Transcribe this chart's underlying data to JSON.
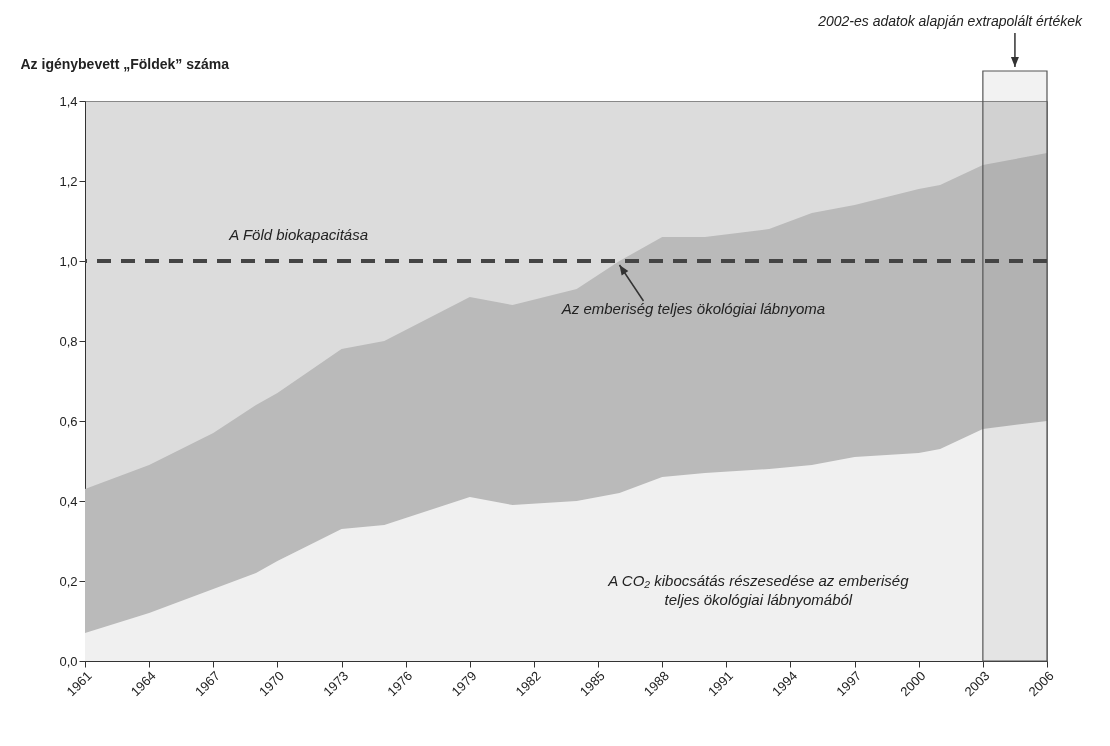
{
  "chart_data": {
    "type": "area",
    "ylabel": "Az igénybevett „Földek” száma",
    "x": [
      1961,
      1964,
      1967,
      1969,
      1970,
      1973,
      1975,
      1979,
      1981,
      1984,
      1986,
      1988,
      1990,
      1993,
      1995,
      1997,
      2000,
      2001,
      2003,
      2006
    ],
    "series": [
      {
        "name": "Az emberiség teljes ökológiai lábnyoma",
        "color": "#bababa",
        "values": [
          0.43,
          0.49,
          0.57,
          0.64,
          0.67,
          0.78,
          0.8,
          0.91,
          0.89,
          0.93,
          1.0,
          1.06,
          1.06,
          1.08,
          1.12,
          1.14,
          1.18,
          1.19,
          1.24,
          1.27
        ]
      },
      {
        "name": "A CO₂ kibocsátás részesedése az emberiség teljes ökológiai lábnyomából",
        "color": "#f0f0f0",
        "values": [
          0.07,
          0.12,
          0.18,
          0.22,
          0.25,
          0.33,
          0.34,
          0.41,
          0.39,
          0.4,
          0.42,
          0.46,
          0.47,
          0.48,
          0.49,
          0.51,
          0.52,
          0.53,
          0.58,
          0.6
        ]
      }
    ],
    "xlim": [
      1961,
      2006
    ],
    "xticks": [
      1961,
      1964,
      1967,
      1970,
      1973,
      1976,
      1979,
      1982,
      1985,
      1988,
      1991,
      1994,
      1997,
      2000,
      2003,
      2006
    ],
    "ylim": [
      0,
      1.4
    ],
    "yticks": [
      {
        "value": 0,
        "label": "0,0"
      },
      {
        "value": 0.2,
        "label": "0,2"
      },
      {
        "value": 0.4,
        "label": "0,4"
      },
      {
        "value": 0.6,
        "label": "0,6"
      },
      {
        "value": 0.8,
        "label": "0,8"
      },
      {
        "value": 1.0,
        "label": "1,0"
      },
      {
        "value": 1.2,
        "label": "1,2"
      },
      {
        "value": 1.4,
        "label": "1,4"
      }
    ],
    "ref_lines": [
      {
        "axis": "y",
        "value": 1.0,
        "label": "A Föld biokapacitása",
        "color": "#444444",
        "line_style": "dashed"
      }
    ],
    "bands": [
      {
        "axis": "x",
        "from": 2003,
        "to": 2006,
        "label": "2002-es adatok alapján extrapolált értékek",
        "color": "#555555"
      }
    ],
    "grid": false
  }
}
